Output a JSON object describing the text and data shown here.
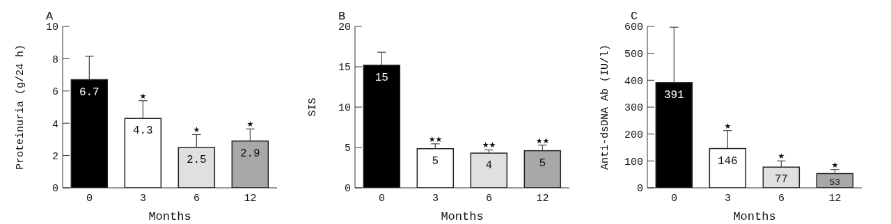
{
  "chart_data": [
    {
      "type": "bar",
      "title": "A",
      "xlabel": "Months",
      "ylabel": "Proteinuria (g/24 h)",
      "categories": [
        "0",
        "3",
        "6",
        "12"
      ],
      "values": [
        6.7,
        4.3,
        2.5,
        2.9
      ],
      "colors": [
        "#000000",
        "#ffffff",
        "#e0e0e0",
        "#a8a8a8"
      ],
      "errors": [
        [
          6.7,
          8.15
        ],
        [
          4.3,
          5.4
        ],
        [
          2.5,
          3.3
        ],
        [
          2.9,
          3.65
        ]
      ],
      "data_labels": true,
      "ylim": [
        0,
        10
      ],
      "yticks": [
        0,
        2,
        4,
        6,
        8,
        10
      ],
      "grid": false,
      "legend": false,
      "annotations": [
        {
          "text": "★",
          "x": "3",
          "y": 5.4
        },
        {
          "text": "★",
          "x": "6",
          "y": 3.3
        },
        {
          "text": "★",
          "x": "12",
          "y": 3.65
        }
      ]
    },
    {
      "type": "bar",
      "title": "B",
      "xlabel": "Months",
      "ylabel": "SIS",
      "categories": [
        "0",
        "3",
        "6",
        "12"
      ],
      "values": [
        15.2,
        4.85,
        4.3,
        4.6
      ],
      "value_labels": [
        "15",
        "5",
        "4",
        "5"
      ],
      "colors": [
        "#000000",
        "#ffffff",
        "#e0e0e0",
        "#a8a8a8"
      ],
      "errors": [
        [
          15.2,
          16.8
        ],
        [
          4.85,
          5.45
        ],
        [
          4.3,
          4.7
        ],
        [
          4.6,
          5.3
        ]
      ],
      "ylim": [
        0,
        20
      ],
      "yticks": [
        0,
        5,
        10,
        15,
        20
      ],
      "grid": false,
      "legend": false,
      "annotations": [
        {
          "text": "★★",
          "x": "3",
          "y": 5.45
        },
        {
          "text": "★★",
          "x": "6",
          "y": 4.7
        },
        {
          "text": "★★",
          "x": "12",
          "y": 5.3
        }
      ]
    },
    {
      "type": "bar",
      "title": "C",
      "xlabel": "Months",
      "ylabel": "Anti-dsDNA Ab (IU/l)",
      "categories": [
        "0",
        "3",
        "6",
        "12"
      ],
      "values": [
        391,
        146,
        77,
        53
      ],
      "colors": [
        "#000000",
        "#ffffff",
        "#e0e0e0",
        "#a8a8a8"
      ],
      "errors": [
        [
          391,
          597
        ],
        [
          146,
          213
        ],
        [
          77,
          100
        ],
        [
          53,
          68
        ]
      ],
      "data_labels": true,
      "ylim": [
        0,
        600
      ],
      "yticks": [
        0,
        100,
        200,
        300,
        400,
        500,
        600
      ],
      "grid": false,
      "legend": false,
      "annotations": [
        {
          "text": "★",
          "x": "3",
          "y": 213
        },
        {
          "text": "★",
          "x": "6",
          "y": 100
        },
        {
          "text": "★",
          "x": "12",
          "y": 68
        }
      ]
    }
  ]
}
